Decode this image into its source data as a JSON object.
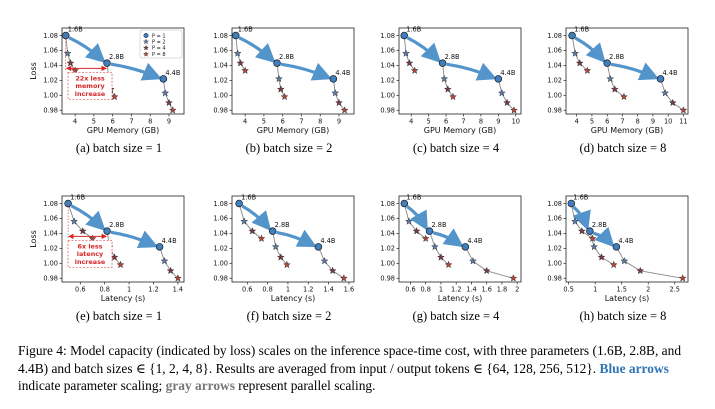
{
  "colors": {
    "blue_arrow": "#4a90c9",
    "gray_line": "#888888",
    "p1": "#3f7fc0",
    "p2": "#5b7aa6",
    "p4": "#7a3b43",
    "p8": "#b2473a",
    "annotation": "#d62728"
  },
  "legend": [
    "P = 1",
    "P = 2",
    "P = 4",
    "P = 8"
  ],
  "model_labels": [
    "1.6B",
    "2.8B",
    "4.4B"
  ],
  "caption": {
    "figure_label": "Figure 4:",
    "part1": "Model capacity (indicated by loss) scales on the inference space-time cost, with three parameters (1.6B, 2.8B, and 4.4B) and batch sizes",
    "batch_set": "∈ {1, 2, 4, 8}",
    "part2": ". Results are averaged from input / output tokens",
    "token_set": "∈ {64, 128, 256, 512}",
    "part3": ".",
    "blue_text": "Blue arrows",
    "part4": "indicate parameter scaling;",
    "gray_text": "gray arrows",
    "part5": "represent parallel scaling."
  },
  "chart_data": [
    {
      "type": "scatter",
      "subtitle": "(a) batch size = 1",
      "xlabel": "GPU Memory (GB)",
      "ylabel": "Loss",
      "xlim": [
        3.3,
        9.8
      ],
      "xticks": [
        4,
        5,
        6,
        7,
        8,
        9
      ],
      "ylim": [
        0.975,
        1.09
      ],
      "yticks": [
        0.98,
        1.0,
        1.02,
        1.04,
        1.06,
        1.08
      ],
      "annotation": [
        "22x less",
        "memory",
        "increase"
      ],
      "series": [
        {
          "model": "1.6B",
          "x": [
            3.5,
            3.6,
            3.75,
            4.0
          ],
          "y": [
            1.08,
            1.056,
            1.043,
            1.033
          ]
        },
        {
          "model": "2.8B",
          "x": [
            5.7,
            5.8,
            5.9,
            6.1
          ],
          "y": [
            1.043,
            1.022,
            1.008,
            0.998
          ]
        },
        {
          "model": "4.4B",
          "x": [
            8.7,
            8.8,
            9.0,
            9.2
          ],
          "y": [
            1.022,
            1.003,
            0.99,
            0.98
          ]
        }
      ]
    },
    {
      "type": "scatter",
      "subtitle": "(b) batch size = 2",
      "xlabel": "GPU Memory (GB)",
      "ylabel": "",
      "xlim": [
        3.3,
        9.8
      ],
      "xticks": [
        4,
        5,
        6,
        7,
        8,
        9
      ],
      "ylim": [
        0.975,
        1.09
      ],
      "yticks": [
        0.98,
        1.0,
        1.02,
        1.04,
        1.06,
        1.08
      ],
      "series": [
        {
          "model": "1.6B",
          "x": [
            3.5,
            3.6,
            3.75,
            4.0
          ],
          "y": [
            1.08,
            1.056,
            1.043,
            1.033
          ]
        },
        {
          "model": "2.8B",
          "x": [
            5.7,
            5.8,
            5.9,
            6.1
          ],
          "y": [
            1.043,
            1.022,
            1.008,
            0.998
          ]
        },
        {
          "model": "4.4B",
          "x": [
            8.7,
            8.8,
            9.0,
            9.3
          ],
          "y": [
            1.022,
            1.003,
            0.99,
            0.98
          ]
        }
      ]
    },
    {
      "type": "scatter",
      "subtitle": "(c) batch size = 4",
      "xlabel": "GPU Memory (GB)",
      "ylabel": "",
      "xlim": [
        3.3,
        10.3
      ],
      "xticks": [
        4,
        5,
        6,
        7,
        8,
        9,
        10
      ],
      "ylim": [
        0.975,
        1.09
      ],
      "yticks": [
        0.98,
        1.0,
        1.02,
        1.04,
        1.06,
        1.08
      ],
      "series": [
        {
          "model": "1.6B",
          "x": [
            3.6,
            3.7,
            3.9,
            4.2
          ],
          "y": [
            1.08,
            1.056,
            1.043,
            1.033
          ]
        },
        {
          "model": "2.8B",
          "x": [
            5.8,
            5.9,
            6.1,
            6.4
          ],
          "y": [
            1.043,
            1.022,
            1.008,
            0.998
          ]
        },
        {
          "model": "4.4B",
          "x": [
            9.0,
            9.2,
            9.5,
            9.9
          ],
          "y": [
            1.022,
            1.003,
            0.99,
            0.98
          ]
        }
      ]
    },
    {
      "type": "scatter",
      "subtitle": "(d) batch size = 8",
      "xlabel": "GPU Memory (GB)",
      "ylabel": "",
      "xlim": [
        3.3,
        11.3
      ],
      "xticks": [
        4,
        5,
        6,
        7,
        8,
        9,
        10,
        11
      ],
      "ylim": [
        0.975,
        1.09
      ],
      "yticks": [
        0.98,
        1.0,
        1.02,
        1.04,
        1.06,
        1.08
      ],
      "series": [
        {
          "model": "1.6B",
          "x": [
            3.7,
            3.9,
            4.2,
            4.7
          ],
          "y": [
            1.08,
            1.056,
            1.043,
            1.033
          ]
        },
        {
          "model": "2.8B",
          "x": [
            6.0,
            6.2,
            6.5,
            7.1
          ],
          "y": [
            1.043,
            1.022,
            1.008,
            0.998
          ]
        },
        {
          "model": "4.4B",
          "x": [
            9.5,
            9.8,
            10.3,
            11.0
          ],
          "y": [
            1.022,
            1.003,
            0.99,
            0.98
          ]
        }
      ]
    },
    {
      "type": "scatter",
      "subtitle": "(e) batch size = 1",
      "xlabel": "Latency (s)",
      "ylabel": "Loss",
      "xlim": [
        0.45,
        1.45
      ],
      "xticks": [
        0.6,
        0.8,
        1.0,
        1.2,
        1.4
      ],
      "ylim": [
        0.975,
        1.09
      ],
      "yticks": [
        0.98,
        1.0,
        1.02,
        1.04,
        1.06,
        1.08
      ],
      "annotation": [
        "6x less",
        "latency",
        "increase"
      ],
      "series": [
        {
          "model": "1.6B",
          "x": [
            0.5,
            0.55,
            0.62,
            0.7
          ],
          "y": [
            1.08,
            1.056,
            1.043,
            1.033
          ]
        },
        {
          "model": "2.8B",
          "x": [
            0.82,
            0.84,
            0.88,
            0.93
          ],
          "y": [
            1.043,
            1.022,
            1.008,
            0.998
          ]
        },
        {
          "model": "4.4B",
          "x": [
            1.25,
            1.29,
            1.34,
            1.4
          ],
          "y": [
            1.022,
            1.003,
            0.99,
            0.98
          ]
        }
      ]
    },
    {
      "type": "scatter",
      "subtitle": "(f) batch size = 2",
      "xlabel": "Latency (s)",
      "ylabel": "",
      "xlim": [
        0.45,
        1.65
      ],
      "xticks": [
        0.6,
        0.8,
        1.0,
        1.2,
        1.4,
        1.6
      ],
      "ylim": [
        0.975,
        1.09
      ],
      "yticks": [
        0.98,
        1.0,
        1.02,
        1.04,
        1.06,
        1.08
      ],
      "series": [
        {
          "model": "1.6B",
          "x": [
            0.52,
            0.57,
            0.65,
            0.74
          ],
          "y": [
            1.08,
            1.056,
            1.043,
            1.033
          ]
        },
        {
          "model": "2.8B",
          "x": [
            0.85,
            0.88,
            0.93,
            0.99
          ],
          "y": [
            1.043,
            1.022,
            1.008,
            0.998
          ]
        },
        {
          "model": "4.4B",
          "x": [
            1.3,
            1.36,
            1.44,
            1.55
          ],
          "y": [
            1.022,
            1.003,
            0.99,
            0.98
          ]
        }
      ]
    },
    {
      "type": "scatter",
      "subtitle": "(g) batch size = 4",
      "xlabel": "Latency (s)",
      "ylabel": "",
      "xlim": [
        0.45,
        2.05
      ],
      "xticks": [
        0.6,
        0.8,
        1.0,
        1.2,
        1.4,
        1.6,
        1.8,
        2.0
      ],
      "ylim": [
        0.975,
        1.09
      ],
      "yticks": [
        0.98,
        1.0,
        1.02,
        1.04,
        1.06,
        1.08
      ],
      "series": [
        {
          "model": "1.6B",
          "x": [
            0.52,
            0.58,
            0.68,
            0.8
          ],
          "y": [
            1.08,
            1.056,
            1.043,
            1.033
          ]
        },
        {
          "model": "2.8B",
          "x": [
            0.85,
            0.92,
            1.0,
            1.1
          ],
          "y": [
            1.043,
            1.022,
            1.008,
            0.998
          ]
        },
        {
          "model": "4.4B",
          "x": [
            1.32,
            1.42,
            1.6,
            1.95
          ],
          "y": [
            1.022,
            1.003,
            0.99,
            0.98
          ]
        }
      ]
    },
    {
      "type": "scatter",
      "subtitle": "(h) batch size = 8",
      "xlabel": "Latency (s)",
      "ylabel": "",
      "xlim": [
        0.45,
        2.75
      ],
      "xticks": [
        0.5,
        1.0,
        1.5,
        2.0,
        2.5
      ],
      "ylim": [
        0.975,
        1.09
      ],
      "yticks": [
        0.98,
        1.0,
        1.02,
        1.04,
        1.06,
        1.08
      ],
      "series": [
        {
          "model": "1.6B",
          "x": [
            0.55,
            0.62,
            0.75,
            0.95
          ],
          "y": [
            1.08,
            1.056,
            1.043,
            1.033
          ]
        },
        {
          "model": "2.8B",
          "x": [
            0.9,
            0.98,
            1.12,
            1.35
          ],
          "y": [
            1.043,
            1.022,
            1.008,
            0.998
          ]
        },
        {
          "model": "4.4B",
          "x": [
            1.4,
            1.55,
            1.85,
            2.65
          ],
          "y": [
            1.022,
            1.003,
            0.99,
            0.98
          ]
        }
      ]
    }
  ]
}
